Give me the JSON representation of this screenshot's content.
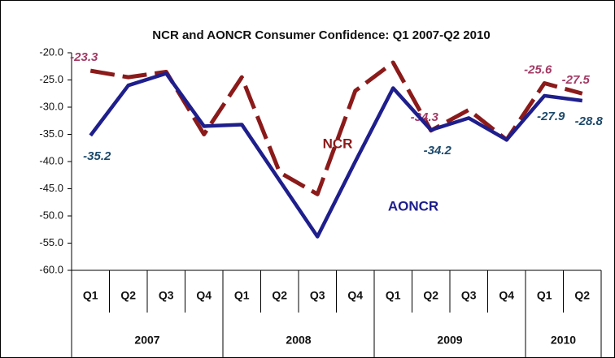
{
  "chart_data": {
    "type": "line",
    "title": "NCR and AONCR Consumer Confidence: Q1 2007-Q2 2010",
    "categories": [
      "Q1",
      "Q2",
      "Q3",
      "Q4",
      "Q1",
      "Q2",
      "Q3",
      "Q4",
      "Q1",
      "Q2",
      "Q3",
      "Q4",
      "Q1",
      "Q2"
    ],
    "years": [
      "2007",
      "2008",
      "2009",
      "2010"
    ],
    "ylim": [
      -60,
      -20
    ],
    "yticks": [
      {
        "value": -20,
        "label": "-20.0"
      },
      {
        "value": -25,
        "label": "-25.0"
      },
      {
        "value": -30,
        "label": "-30.0"
      },
      {
        "value": -35,
        "label": "-35.0"
      },
      {
        "value": -40,
        "label": "-40.0"
      },
      {
        "value": -45,
        "label": "-45.0"
      },
      {
        "value": -50,
        "label": "-50.0"
      },
      {
        "value": -55,
        "label": "-55.0"
      },
      {
        "value": -60,
        "label": "-60.0"
      }
    ],
    "series": [
      {
        "name": "NCR",
        "color": "#8b1a1a",
        "dashed": true,
        "label_color": "#a33a64",
        "values": [
          -23.3,
          -24.5,
          -23.5,
          -35,
          -24.5,
          -42,
          -46,
          -27,
          -21.8,
          -34.3,
          -30.5,
          -36,
          -25.6,
          -27.5
        ],
        "value_labels": [
          "-23.3",
          null,
          null,
          null,
          null,
          null,
          null,
          null,
          null,
          "-34.3",
          null,
          null,
          "-25.6",
          "-27.5"
        ]
      },
      {
        "name": "AONCR",
        "color": "#1e1e8c",
        "dashed": false,
        "label_color": "#1d4a6b",
        "values": [
          -35.2,
          -26,
          -23.8,
          -33.5,
          -33.2,
          -43.5,
          -53.8,
          -40,
          -26.5,
          -34.2,
          -32,
          -36,
          -27.9,
          -28.8
        ],
        "value_labels": [
          "-35.2",
          null,
          null,
          null,
          null,
          null,
          null,
          null,
          null,
          "-34.2",
          null,
          null,
          "-27.9",
          "-28.8"
        ]
      }
    ]
  }
}
